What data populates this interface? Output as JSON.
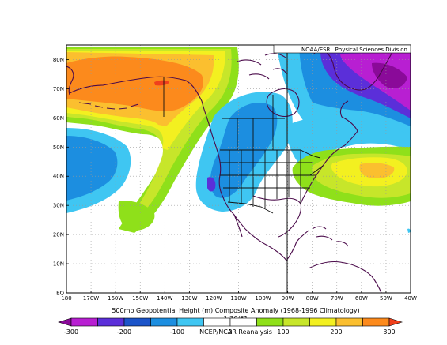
{
  "map": {
    "credit": "NOAA/ESRL Physical Sciences Division",
    "caption": "500mb Geopotential Height (m) Composite Anomaly (1968-1996 Climatology)",
    "date": "1/30/61",
    "source": "NCEP/NCAR Reanalysis",
    "lat_labels": [
      "80N",
      "70N",
      "60N",
      "50N",
      "40N",
      "30N",
      "20N",
      "10N",
      "EQ"
    ],
    "lon_labels": [
      "180",
      "170W",
      "160W",
      "150W",
      "140W",
      "130W",
      "120W",
      "110W",
      "100W",
      "90W",
      "80W",
      "70W",
      "60W",
      "50W",
      "40W"
    ],
    "projection_bounds": {
      "lon_min": -180,
      "lon_max": -40,
      "lat_min": 0,
      "lat_max": 85
    },
    "colors": {
      "neg300": "#8a0a99",
      "neg250": "#b81fd2",
      "neg200": "#5b2fd9",
      "neg150": "#1b54c9",
      "neg100": "#1c8ee0",
      "neg50": "#3fc6f2",
      "pos50": "#8fe01a",
      "pos100": "#c7e62a",
      "pos150": "#f3f020",
      "pos200": "#fbbf2f",
      "pos250": "#fc8a1c",
      "pos300": "#f0401c"
    }
  },
  "colorbar": {
    "ticks": [
      "-300",
      "-200",
      "-100",
      "0",
      "100",
      "200",
      "300"
    ],
    "levels": [
      -300,
      -250,
      -200,
      -150,
      -100,
      -50,
      0,
      50,
      100,
      150,
      200,
      250,
      300
    ]
  }
}
